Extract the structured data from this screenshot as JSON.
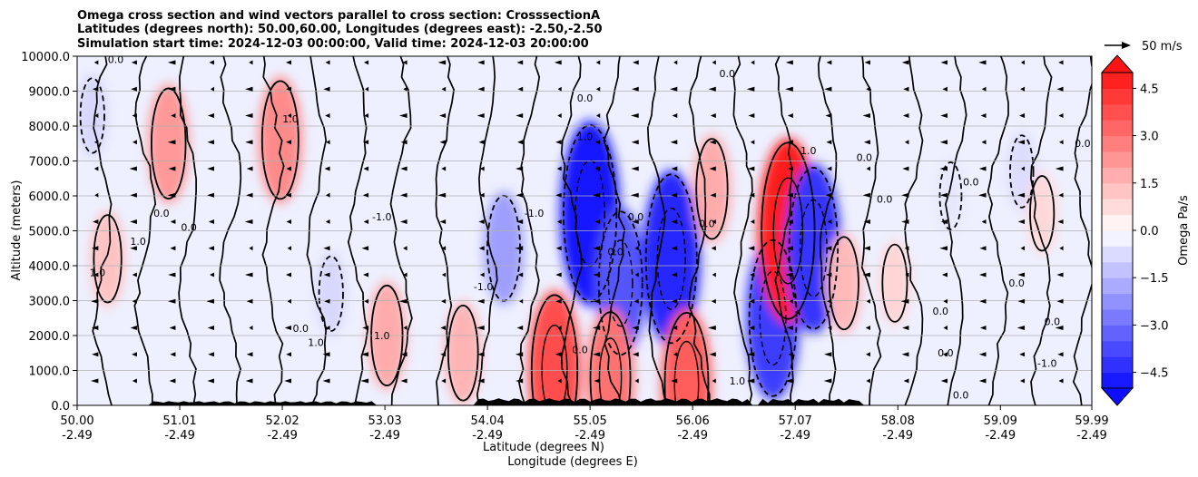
{
  "chart_data": {
    "type": "heatmap",
    "title_lines": [
      "Omega cross section and wind vectors parallel to cross section: CrosssectionA",
      "Latitudes (degrees north): 50.00,60.00, Longitudes (degrees east): -2.50,-2.50",
      "Simulation start time: 2024-12-03 00:00:00, Valid time: 2024-12-03 20:00:00"
    ],
    "xlabel": "Latitude (degrees N)",
    "xlabel2": "Longitude (degrees E)",
    "ylabel": "Altitude (meters)",
    "xlim": [
      50.0,
      59.99
    ],
    "ylim": [
      0,
      10000
    ],
    "x_ticks": [
      {
        "lat": "50.00",
        "lon": "-2.49",
        "value": 50.0
      },
      {
        "lat": "51.01",
        "lon": "-2.49",
        "value": 51.01
      },
      {
        "lat": "52.02",
        "lon": "-2.49",
        "value": 52.02
      },
      {
        "lat": "53.03",
        "lon": "-2.49",
        "value": 53.03
      },
      {
        "lat": "54.04",
        "lon": "-2.49",
        "value": 54.04
      },
      {
        "lat": "55.05",
        "lon": "-2.49",
        "value": 55.05
      },
      {
        "lat": "56.06",
        "lon": "-2.49",
        "value": 56.06
      },
      {
        "lat": "57.07",
        "lon": "-2.49",
        "value": 57.07
      },
      {
        "lat": "58.08",
        "lon": "-2.49",
        "value": 58.08
      },
      {
        "lat": "59.09",
        "lon": "-2.49",
        "value": 59.09
      },
      {
        "lat": "59.99",
        "lon": "-2.49",
        "value": 59.99
      }
    ],
    "y_ticks": [
      {
        "label": "0.0",
        "value": 0
      },
      {
        "label": "1000.0",
        "value": 1000
      },
      {
        "label": "2000.0",
        "value": 2000
      },
      {
        "label": "3000.0",
        "value": 3000
      },
      {
        "label": "4000.0",
        "value": 4000
      },
      {
        "label": "5000.0",
        "value": 5000
      },
      {
        "label": "6000.0",
        "value": 6000
      },
      {
        "label": "7000.0",
        "value": 7000
      },
      {
        "label": "8000.0",
        "value": 8000
      },
      {
        "label": "9000.0",
        "value": 9000
      },
      {
        "label": "10000.0",
        "value": 10000
      }
    ],
    "grid": "horizontal",
    "colorbar": {
      "label": "Omega Pa/s",
      "min": -5.0,
      "max": 5.0,
      "extend": "both",
      "ticks": [
        {
          "label": "4.5",
          "value": 4.5
        },
        {
          "label": "3.0",
          "value": 3.0
        },
        {
          "label": "1.5",
          "value": 1.5
        },
        {
          "label": "0.0",
          "value": 0.0
        },
        {
          "label": "−1.5",
          "value": -1.5
        },
        {
          "label": "−3.0",
          "value": -3.0
        },
        {
          "label": "−4.5",
          "value": -4.5
        }
      ],
      "colors": {
        "negative": "#0000ff",
        "zero": "#ffffff",
        "positive": "#ff0000"
      }
    },
    "quiver_key": {
      "label": "50 m/s",
      "speed": 50
    },
    "omega_features": [
      {
        "name": "descent-upper-left",
        "lat": 50.9,
        "alt": 7500,
        "omega": 2.2
      },
      {
        "name": "descent-51.9",
        "lat": 52.0,
        "alt": 7600,
        "omega": 2.5
      },
      {
        "name": "ascent-54.2",
        "lat": 54.2,
        "alt": 4500,
        "omega": -2.0
      },
      {
        "name": "ascent-55.0-core",
        "lat": 55.05,
        "alt": 5500,
        "omega": -4.8
      },
      {
        "name": "ascent-55.4",
        "lat": 55.35,
        "alt": 3500,
        "omega": -3.5
      },
      {
        "name": "ascent-55.85",
        "lat": 55.85,
        "alt": 4200,
        "omega": -4.5
      },
      {
        "name": "descent-56.25",
        "lat": 56.25,
        "alt": 6200,
        "omega": 1.8
      },
      {
        "name": "descent-54.7-low",
        "lat": 54.7,
        "alt": 1000,
        "omega": 3.8
      },
      {
        "name": "descent-55.2-low",
        "lat": 55.25,
        "alt": 800,
        "omega": 3.0
      },
      {
        "name": "descent-56.0-low",
        "lat": 56.0,
        "alt": 600,
        "omega": 3.5
      },
      {
        "name": "ascent-56.8",
        "lat": 56.85,
        "alt": 2500,
        "omega": -4.0
      },
      {
        "name": "descent-57.0-column",
        "lat": 57.0,
        "alt": 5000,
        "omega": 4.8
      },
      {
        "name": "ascent-57.25-column",
        "lat": 57.25,
        "alt": 4500,
        "omega": -4.2
      },
      {
        "name": "descent-57.5",
        "lat": 57.55,
        "alt": 3500,
        "omega": 1.5
      },
      {
        "name": "descent-53.0-low",
        "lat": 53.05,
        "alt": 2000,
        "omega": 1.8
      },
      {
        "name": "descent-53.8-low",
        "lat": 53.8,
        "alt": 1500,
        "omega": 1.6
      },
      {
        "name": "ascent-52.2",
        "lat": 52.5,
        "alt": 3200,
        "omega": -0.8
      },
      {
        "name": "ascent-58.5",
        "lat": 58.6,
        "alt": 6000,
        "omega": -0.5
      },
      {
        "name": "ascent-59.3",
        "lat": 59.3,
        "alt": 6700,
        "omega": -0.7
      },
      {
        "name": "descent-58.0",
        "lat": 58.05,
        "alt": 3500,
        "omega": 0.9
      },
      {
        "name": "descent-59.5",
        "lat": 59.5,
        "alt": 5500,
        "omega": 0.8
      },
      {
        "name": "descent-50.3",
        "lat": 50.3,
        "alt": 4200,
        "omega": 1.3
      },
      {
        "name": "ascent-50.1-top",
        "lat": 50.15,
        "alt": 8300,
        "omega": -0.8
      }
    ],
    "contour_labels": [
      {
        "text": "0.0",
        "lat": 50.38,
        "alt": 9800
      },
      {
        "text": "-1.0",
        "lat": 53.0,
        "alt": 5300
      },
      {
        "text": "-1.0",
        "lat": 54.0,
        "alt": 3300
      },
      {
        "text": "0.0",
        "lat": 55.0,
        "alt": 8700
      },
      {
        "text": "1.0",
        "lat": 52.35,
        "alt": 1700
      },
      {
        "text": "1.0",
        "lat": 53.0,
        "alt": 1900
      },
      {
        "text": "0.0",
        "lat": 52.2,
        "alt": 2100
      },
      {
        "text": "0.0",
        "lat": 51.1,
        "alt": 5000
      },
      {
        "text": "0.0",
        "lat": 50.83,
        "alt": 5400
      },
      {
        "text": "1.0",
        "lat": 50.6,
        "alt": 4600
      },
      {
        "text": "1.0",
        "lat": 50.2,
        "alt": 3700
      },
      {
        "text": "0.0",
        "lat": 58.55,
        "alt": 1400
      },
      {
        "text": "-1.0",
        "lat": 59.55,
        "alt": 1100
      },
      {
        "text": "0.0",
        "lat": 59.25,
        "alt": 3400
      },
      {
        "text": "0.0",
        "lat": 58.5,
        "alt": 2600
      },
      {
        "text": "0.0",
        "lat": 59.6,
        "alt": 2300
      },
      {
        "text": "1.0",
        "lat": 55.0,
        "alt": 7600
      },
      {
        "text": "0.0",
        "lat": 56.4,
        "alt": 9400
      },
      {
        "text": "0.0",
        "lat": 57.75,
        "alt": 7000
      },
      {
        "text": "1.0",
        "lat": 57.2,
        "alt": 7200
      },
      {
        "text": "0.0",
        "lat": 59.9,
        "alt": 7400
      },
      {
        "text": "0.0",
        "lat": 58.8,
        "alt": 6300
      },
      {
        "text": "0.0",
        "lat": 57.95,
        "alt": 5800
      },
      {
        "text": "0.0",
        "lat": 55.3,
        "alt": 4300
      },
      {
        "text": "-1.0",
        "lat": 54.5,
        "alt": 5400
      },
      {
        "text": "0.0",
        "lat": 54.95,
        "alt": 1500
      },
      {
        "text": "1.0",
        "lat": 56.5,
        "alt": 600
      },
      {
        "text": "0.0",
        "lat": 56.2,
        "alt": 5100
      },
      {
        "text": "0.0",
        "lat": 58.7,
        "alt": 200
      },
      {
        "text": "0.0",
        "lat": 55.5,
        "alt": 5300
      },
      {
        "text": "1.0",
        "lat": 52.1,
        "alt": 8100
      }
    ]
  }
}
